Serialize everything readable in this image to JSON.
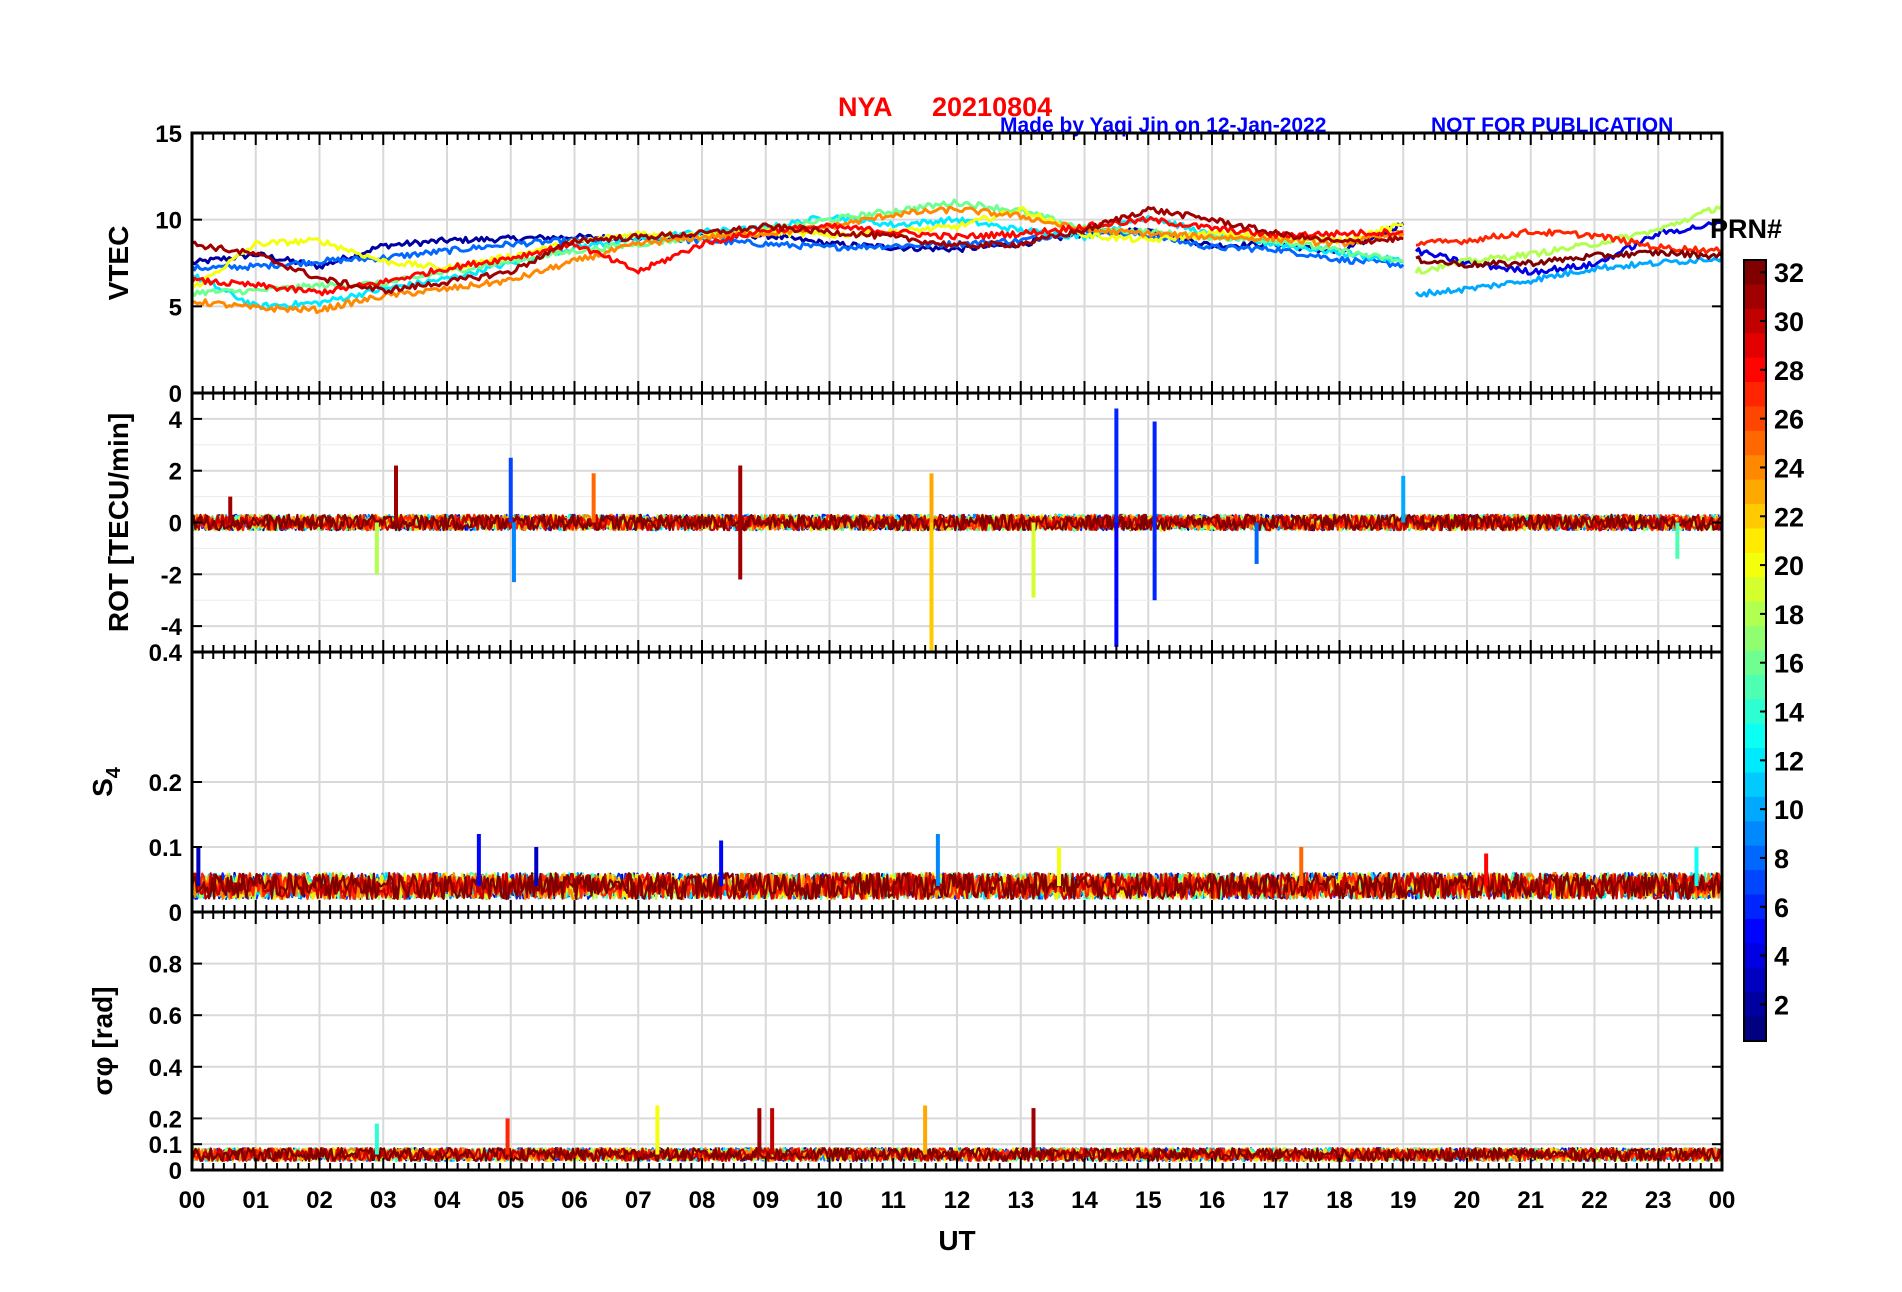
{
  "header": {
    "station": "NYA",
    "date": "20210804",
    "credit": "Made by Yaqi Jin on 12-Jan-2022",
    "notice": "NOT FOR PUBLICATION",
    "title_color": "#ff0000",
    "credit_color": "#0000ff"
  },
  "xaxis": {
    "label": "UT",
    "ticks": [
      "00",
      "01",
      "02",
      "03",
      "04",
      "05",
      "06",
      "07",
      "08",
      "09",
      "10",
      "11",
      "12",
      "13",
      "14",
      "15",
      "16",
      "17",
      "18",
      "19",
      "20",
      "21",
      "22",
      "23",
      "00"
    ]
  },
  "colorbar": {
    "title": "PRN#",
    "min": 1,
    "max": 32,
    "ticks": [
      "32",
      "30",
      "28",
      "26",
      "24",
      "22",
      "20",
      "18",
      "16",
      "14",
      "12",
      "10",
      "8",
      "6",
      "4",
      "2"
    ],
    "colormap": "jet"
  },
  "chart_data": [
    {
      "type": "line",
      "panel": "vtec",
      "ylabel": "VTEC",
      "ylim": [
        0,
        15
      ],
      "yticks": [
        "15",
        "10",
        "5",
        "0"
      ],
      "xlim": [
        0,
        24
      ],
      "grid": true,
      "series": [
        {
          "prn": 2,
          "x": [
            0,
            1,
            2,
            3,
            4,
            5,
            6,
            7,
            8,
            9,
            10,
            11,
            12,
            13,
            14,
            15,
            16,
            17,
            18,
            19
          ],
          "y": [
            7.5,
            8.0,
            7.3,
            8.5,
            8.8,
            8.9,
            9.0,
            8.9,
            9.0,
            9.1,
            8.6,
            8.4,
            8.3,
            8.6,
            9.2,
            9.4,
            8.5,
            8.6,
            8.1,
            9.8
          ]
        },
        {
          "prn": 8,
          "x": [
            0,
            1,
            2,
            3,
            4,
            5,
            6,
            7,
            8,
            9,
            10,
            11,
            12,
            13,
            14,
            15,
            16,
            17,
            18,
            19
          ],
          "y": [
            7.2,
            7.3,
            7.6,
            7.8,
            8.2,
            8.6,
            8.8,
            8.9,
            8.8,
            8.6,
            8.4,
            8.5,
            8.6,
            8.8,
            9.4,
            9.1,
            8.4,
            8.3,
            7.7,
            7.4
          ]
        },
        {
          "prn": 12,
          "x": [
            0,
            1,
            2,
            3,
            4,
            5,
            6,
            7,
            8,
            9,
            10,
            11,
            12,
            13,
            14,
            15,
            16,
            17,
            18,
            19
          ],
          "y": [
            6.8,
            5.0,
            5.2,
            6.0,
            6.6,
            7.5,
            8.4,
            8.9,
            9.3,
            9.5,
            10.2,
            9.7,
            10.0,
            9.4,
            9.0,
            10.2,
            9.1,
            8.6,
            8.1,
            7.6
          ]
        },
        {
          "prn": 16,
          "x": [
            0,
            1,
            2,
            3,
            4,
            5,
            6,
            7,
            8,
            9,
            10,
            11,
            12,
            13,
            14,
            15,
            16,
            17,
            18,
            19
          ],
          "y": [
            5.8,
            5.9,
            6.2,
            6.3,
            7.0,
            7.6,
            8.2,
            8.6,
            9.0,
            9.4,
            10.0,
            10.5,
            11.0,
            10.5,
            9.5,
            9.3,
            9.0,
            8.8,
            8.2,
            7.6
          ]
        },
        {
          "prn": 20,
          "x": [
            0,
            1,
            2,
            3,
            4,
            5,
            6,
            7,
            8,
            9,
            10,
            11,
            12,
            13,
            14,
            15,
            16,
            17,
            18,
            19
          ],
          "y": [
            6.0,
            8.6,
            8.8,
            7.6,
            7.2,
            7.9,
            8.7,
            9.2,
            9.1,
            9.3,
            9.1,
            9.3,
            9.6,
            10.6,
            9.1,
            8.8,
            9.2,
            9.0,
            8.8,
            9.7
          ]
        },
        {
          "prn": 24,
          "x": [
            0,
            1,
            2,
            3,
            4,
            5,
            6,
            7,
            8,
            9,
            10,
            11,
            12,
            13,
            14,
            15,
            16,
            17,
            18,
            19
          ],
          "y": [
            5.3,
            4.9,
            4.8,
            5.6,
            6.0,
            6.5,
            7.6,
            8.6,
            9.0,
            9.2,
            9.6,
            10.3,
            10.6,
            10.2,
            9.4,
            9.2,
            9.0,
            8.9,
            8.6,
            9.2
          ]
        },
        {
          "prn": 28,
          "x": [
            0,
            1,
            2,
            3,
            4,
            5,
            6,
            7,
            8,
            9,
            10,
            11,
            12,
            13,
            14,
            15,
            16,
            17,
            18,
            19
          ],
          "y": [
            6.5,
            6.2,
            5.8,
            6.4,
            7.2,
            7.8,
            8.6,
            7.0,
            8.6,
            9.4,
            9.6,
            9.3,
            9.0,
            9.2,
            9.6,
            10.0,
            9.5,
            9.1,
            9.2,
            9.3
          ]
        },
        {
          "prn": 31,
          "x": [
            0,
            1,
            2,
            3,
            4,
            5,
            6,
            7,
            8,
            9,
            10,
            11,
            12,
            13,
            14,
            15,
            16,
            17,
            18,
            19
          ],
          "y": [
            8.6,
            8.0,
            6.6,
            5.9,
            6.4,
            7.0,
            8.8,
            9.0,
            9.2,
            9.6,
            9.3,
            9.0,
            8.5,
            8.6,
            9.4,
            10.6,
            10.0,
            9.2,
            8.7,
            8.9
          ]
        },
        {
          "prn": 4,
          "x": [
            19.2,
            20,
            21,
            22,
            23,
            24
          ],
          "y": [
            8.2,
            7.5,
            7.0,
            7.4,
            9.2,
            9.8
          ]
        },
        {
          "prn": 10,
          "x": [
            19.2,
            20,
            21,
            22,
            23,
            24
          ],
          "y": [
            5.7,
            6.0,
            6.5,
            7.2,
            7.5,
            7.8
          ]
        },
        {
          "prn": 18,
          "x": [
            19.2,
            20,
            21,
            22,
            23,
            24
          ],
          "y": [
            7.0,
            7.6,
            8.0,
            8.6,
            9.4,
            10.8
          ]
        },
        {
          "prn": 27,
          "x": [
            19.2,
            20,
            21,
            22,
            23,
            24
          ],
          "y": [
            8.6,
            8.8,
            9.3,
            9.1,
            8.4,
            8.2
          ]
        },
        {
          "prn": 32,
          "x": [
            19.2,
            20,
            21,
            22,
            23,
            24
          ],
          "y": [
            7.7,
            7.4,
            7.5,
            7.9,
            8.1,
            7.9
          ]
        }
      ]
    },
    {
      "type": "line",
      "panel": "rot",
      "ylabel": "ROT [TECU/min]",
      "ylim": [
        -5,
        5
      ],
      "yticks": [
        "4",
        "2",
        "0",
        "-2",
        "-4"
      ],
      "xlim": [
        0,
        24
      ],
      "grid": true,
      "baseline": 0,
      "noise_amplitude": 0.3,
      "spikes": [
        {
          "x": 0.6,
          "y": 1.0,
          "prn": 31
        },
        {
          "x": 2.9,
          "y": -2.0,
          "prn": 18
        },
        {
          "x": 3.2,
          "y": 2.2,
          "prn": 31
        },
        {
          "x": 5.0,
          "y": 2.5,
          "prn": 7
        },
        {
          "x": 5.05,
          "y": -2.3,
          "prn": 9
        },
        {
          "x": 6.3,
          "y": 1.9,
          "prn": 25
        },
        {
          "x": 8.6,
          "y": 2.2,
          "prn": 31
        },
        {
          "x": 8.6,
          "y": -2.2,
          "prn": 31
        },
        {
          "x": 11.6,
          "y": 1.9,
          "prn": 23
        },
        {
          "x": 11.6,
          "y": -5.0,
          "prn": 22
        },
        {
          "x": 13.2,
          "y": -2.9,
          "prn": 19
        },
        {
          "x": 14.5,
          "y": 4.4,
          "prn": 6
        },
        {
          "x": 14.5,
          "y": -4.8,
          "prn": 5
        },
        {
          "x": 15.1,
          "y": 3.9,
          "prn": 6
        },
        {
          "x": 15.1,
          "y": -3.0,
          "prn": 6
        },
        {
          "x": 16.7,
          "y": -1.6,
          "prn": 8
        },
        {
          "x": 19.0,
          "y": 1.8,
          "prn": 10
        },
        {
          "x": 23.3,
          "y": -1.4,
          "prn": 15
        }
      ]
    },
    {
      "type": "line",
      "panel": "s4",
      "ylabel": "S4",
      "ylim": [
        0,
        0.4
      ],
      "yticks": [
        "0.4",
        "0.2",
        "0.1",
        "0"
      ],
      "xlim": [
        0,
        24
      ],
      "grid": true,
      "baseline": 0.04,
      "noise_amplitude": 0.02,
      "spikes": [
        {
          "x": 0.1,
          "y": 0.1,
          "prn": 3
        },
        {
          "x": 4.5,
          "y": 0.12,
          "prn": 5
        },
        {
          "x": 5.4,
          "y": 0.1,
          "prn": 3
        },
        {
          "x": 8.3,
          "y": 0.11,
          "prn": 5
        },
        {
          "x": 11.7,
          "y": 0.12,
          "prn": 9
        },
        {
          "x": 13.6,
          "y": 0.1,
          "prn": 20
        },
        {
          "x": 17.4,
          "y": 0.1,
          "prn": 25
        },
        {
          "x": 20.3,
          "y": 0.09,
          "prn": 28
        },
        {
          "x": 23.6,
          "y": 0.1,
          "prn": 13
        }
      ]
    },
    {
      "type": "line",
      "panel": "sigma_phi",
      "ylabel": "σφ [rad]",
      "ylim": [
        0,
        1.0
      ],
      "yticks": [
        "0.8",
        "0.6",
        "0.4",
        "0.2",
        "0.1",
        "0"
      ],
      "xlim": [
        0,
        24
      ],
      "grid": true,
      "baseline": 0.06,
      "noise_amplitude": 0.025,
      "spikes": [
        {
          "x": 2.9,
          "y": 0.18,
          "prn": 14
        },
        {
          "x": 4.95,
          "y": 0.2,
          "prn": 27
        },
        {
          "x": 7.3,
          "y": 0.25,
          "prn": 20
        },
        {
          "x": 8.9,
          "y": 0.24,
          "prn": 31
        },
        {
          "x": 9.1,
          "y": 0.24,
          "prn": 30
        },
        {
          "x": 11.5,
          "y": 0.25,
          "prn": 23
        },
        {
          "x": 13.2,
          "y": 0.24,
          "prn": 31
        }
      ]
    }
  ]
}
